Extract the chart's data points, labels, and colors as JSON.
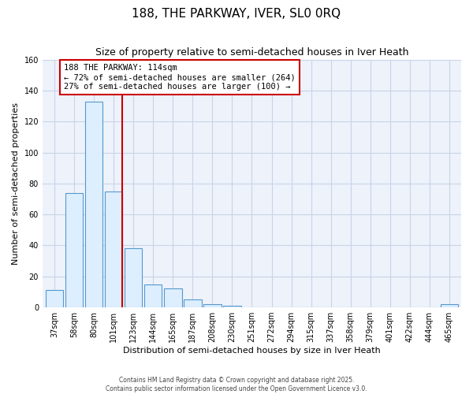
{
  "title": "188, THE PARKWAY, IVER, SL0 0RQ",
  "subtitle": "Size of property relative to semi-detached houses in Iver Heath",
  "xlabel": "Distribution of semi-detached houses by size in Iver Heath",
  "ylabel": "Number of semi-detached properties",
  "bin_labels": [
    "37sqm",
    "58sqm",
    "80sqm",
    "101sqm",
    "123sqm",
    "144sqm",
    "165sqm",
    "187sqm",
    "208sqm",
    "230sqm",
    "251sqm",
    "272sqm",
    "294sqm",
    "315sqm",
    "337sqm",
    "358sqm",
    "379sqm",
    "401sqm",
    "422sqm",
    "444sqm",
    "465sqm"
  ],
  "bar_values": [
    11,
    74,
    133,
    75,
    38,
    15,
    12,
    5,
    2,
    1,
    0,
    0,
    0,
    0,
    0,
    0,
    0,
    0,
    0,
    0,
    2
  ],
  "bar_color": "#ddeeff",
  "bar_edge_color": "#5599cc",
  "property_label": "188 THE PARKWAY: 114sqm",
  "pct_smaller": 72,
  "count_smaller": 264,
  "pct_larger": 27,
  "count_larger": 100,
  "vline_color": "#cc0000",
  "annotation_box_color": "#ffffff",
  "annotation_box_edge": "#cc0000",
  "ylim": [
    0,
    160
  ],
  "yticks": [
    0,
    20,
    40,
    60,
    80,
    100,
    120,
    140,
    160
  ],
  "footer_line1": "Contains HM Land Registry data © Crown copyright and database right 2025.",
  "footer_line2": "Contains public sector information licensed under the Open Government Licence v3.0.",
  "bg_color": "#ffffff",
  "plot_bg_color": "#eef2fb",
  "grid_color": "#c8d4e8",
  "title_fontsize": 11,
  "subtitle_fontsize": 9,
  "axis_label_fontsize": 8,
  "tick_fontsize": 7
}
